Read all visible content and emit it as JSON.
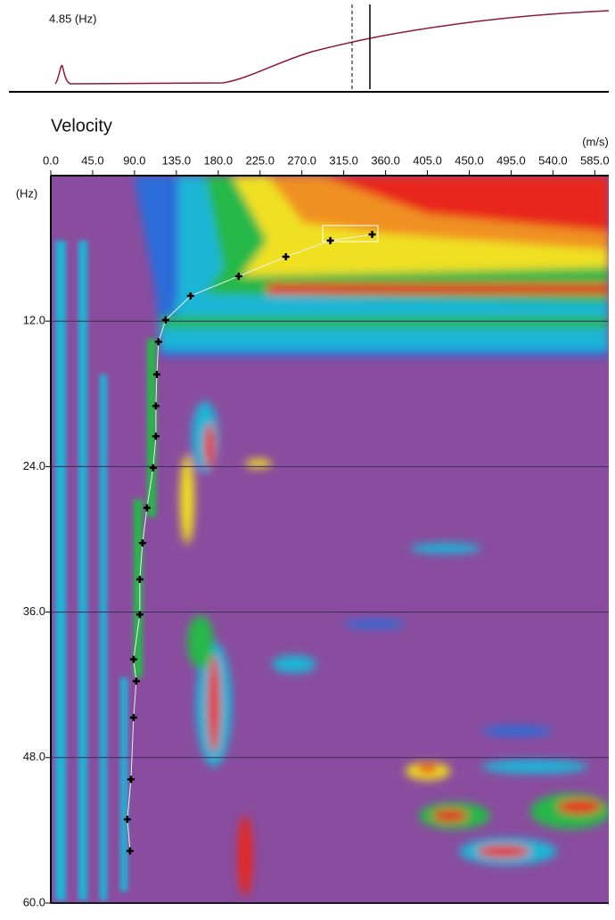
{
  "chart_data": {
    "type": "scatter",
    "title": "Velocity",
    "x_label": "(m/s)",
    "y_label": "(Hz)",
    "annotation": "4.85 (Hz)",
    "x": [
      345.6,
      300.6,
      252.8,
      202,
      150.3,
      123.5,
      115.8,
      114,
      113,
      113,
      110,
      103.4,
      98.6,
      95.7,
      95.7,
      89,
      91.9,
      89,
      86.2,
      82.3,
      85.2
    ],
    "values": [
      4.85,
      5.36,
      6.69,
      8.3,
      9.92,
      11.9,
      13.7,
      16.4,
      19,
      21.5,
      24.1,
      27.4,
      30.3,
      33.3,
      36.2,
      39.9,
      41.7,
      44.7,
      49.8,
      53.1,
      55.7
    ],
    "color": "#000000",
    "xlim": [
      0,
      600
    ],
    "ylim": [
      0,
      60
    ],
    "y_inverted": true,
    "xticks": [
      {
        "value": 0,
        "label": "0.0"
      },
      {
        "value": 45,
        "label": "45.0"
      },
      {
        "value": 90,
        "label": "90.0"
      },
      {
        "value": 135,
        "label": "135.0"
      },
      {
        "value": 180,
        "label": "180.0"
      },
      {
        "value": 225,
        "label": "225.0"
      },
      {
        "value": 270,
        "label": "270.0"
      },
      {
        "value": 315,
        "label": "315.0"
      },
      {
        "value": 360,
        "label": "360.0"
      },
      {
        "value": 405,
        "label": "405.0"
      },
      {
        "value": 450,
        "label": "450.0"
      },
      {
        "value": 495,
        "label": "495.0"
      },
      {
        "value": 540,
        "label": "540.0"
      },
      {
        "value": 585,
        "label": "585.0"
      }
    ],
    "yticks": [
      {
        "value": 12,
        "label": "12.0"
      },
      {
        "value": 24,
        "label": "24.0"
      },
      {
        "value": 36,
        "label": "36.0"
      },
      {
        "value": 48,
        "label": "48.0"
      },
      {
        "value": 60,
        "label": "60.0"
      }
    ],
    "grid": true
  }
}
